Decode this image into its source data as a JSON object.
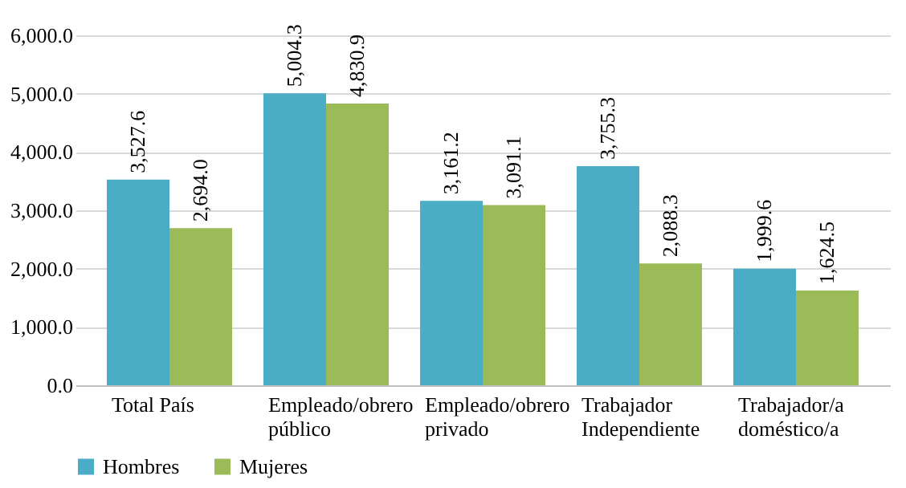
{
  "chart_data": {
    "type": "bar",
    "categories": [
      "Total País",
      "Empleado/obrero\npúblico",
      "Empleado/obrero\nprivado",
      "Trabajador\nIndependiente",
      "Trabajador/a\ndoméstico/a"
    ],
    "series": [
      {
        "name": "Hombres",
        "color": "#4bacc6",
        "values": [
          3527.6,
          5004.3,
          3161.2,
          3755.3,
          1999.6
        ],
        "value_labels": [
          "3,527.6",
          "5,004.3",
          "3,161.2",
          "3,755.3",
          "1,999.6"
        ]
      },
      {
        "name": "Mujeres",
        "color": "#9bbb59",
        "values": [
          2694.0,
          4830.9,
          3091.1,
          2088.3,
          1624.5
        ],
        "value_labels": [
          "2,694.0",
          "4,830.9",
          "3,091.1",
          "2,088.3",
          "1,624.5"
        ]
      }
    ],
    "ylim": [
      0,
      6000
    ],
    "yticks": [
      {
        "value": 0,
        "label": "0.0"
      },
      {
        "value": 1000,
        "label": "1,000.0"
      },
      {
        "value": 2000,
        "label": "2,000.0"
      },
      {
        "value": 3000,
        "label": "3,000.0"
      },
      {
        "value": 4000,
        "label": "4,000.0"
      },
      {
        "value": 5000,
        "label": "5,000.0"
      },
      {
        "value": 6000,
        "label": "6,000.0"
      }
    ],
    "grid": "y",
    "legend": "bottom"
  }
}
